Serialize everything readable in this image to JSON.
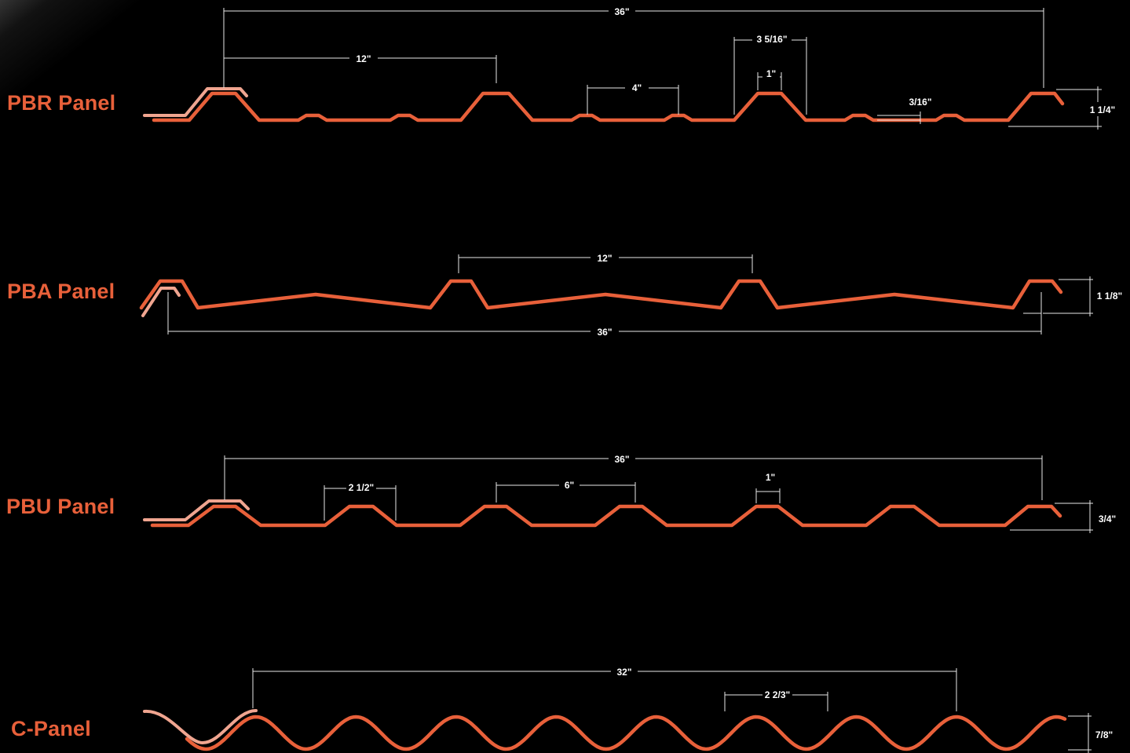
{
  "colors": {
    "background": "#000000",
    "profile": "#e8603a",
    "overlap": "#f0a590",
    "dimension": "#e9e9e9"
  },
  "panels": {
    "pbr": {
      "name": "PBR Panel",
      "dims": {
        "coverage": "36\"",
        "rib_spacing": "12\"",
        "minor_rib_spacing": "4\"",
        "rib_base": "3 5/16\"",
        "rib_top": "1\"",
        "minor_rib_height": "3/16\"",
        "height": "1 1/4\""
      }
    },
    "pba": {
      "name": "PBA Panel",
      "dims": {
        "rib_spacing": "12\"",
        "coverage": "36\"",
        "height": "1 1/8\""
      }
    },
    "pbu": {
      "name": "PBU Panel",
      "dims": {
        "coverage": "36\"",
        "rib_base": "2 1/2\"",
        "rib_spacing": "6\"",
        "rib_top": "1\"",
        "height": "3/4\""
      }
    },
    "c": {
      "name": "C-Panel",
      "dims": {
        "coverage": "32\"",
        "corrugation_pitch": "2 2/3\"",
        "height": "7/8\""
      }
    }
  }
}
